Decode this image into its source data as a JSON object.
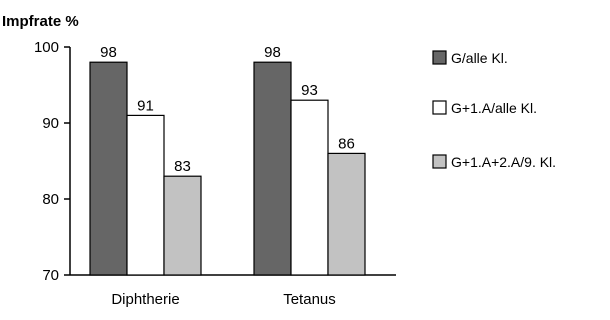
{
  "chart_data": {
    "type": "bar",
    "ylabel": "Impfrate %",
    "ylim": [
      70,
      100
    ],
    "yticks": [
      70,
      80,
      90,
      100
    ],
    "categories": [
      "Diphtherie",
      "Tetanus"
    ],
    "series": [
      {
        "name": "G/alle Kl.",
        "color": "#666666",
        "values": [
          98,
          98
        ]
      },
      {
        "name": "G+1.A/alle Kl.",
        "color": "#ffffff",
        "values": [
          91,
          93
        ]
      },
      {
        "name": "G+1.A+2.A/9. Kl.",
        "color": "#c2c2c2",
        "values": [
          83,
          86
        ]
      }
    ],
    "legend_position": "right",
    "grid": false
  }
}
